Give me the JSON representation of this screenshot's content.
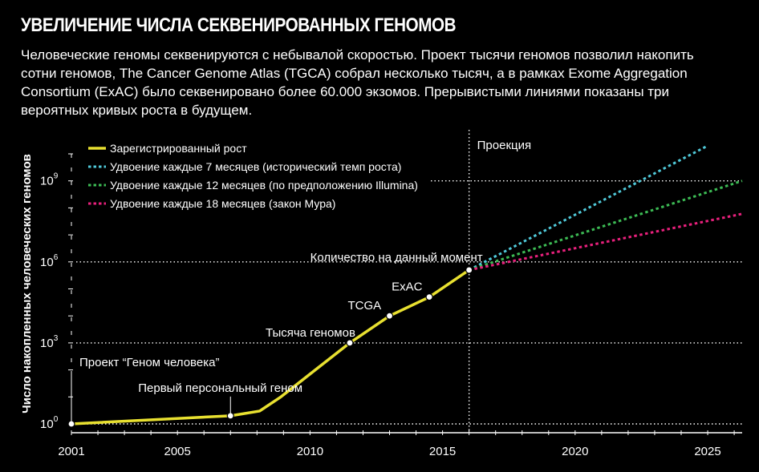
{
  "title": "УВЕЛИЧЕНИЕ ЧИСЛА СЕКВЕНИРОВАННЫХ ГЕНОМОВ",
  "subtitle": "Человеческие геномы секвенируются с небывалой скоростью. Проект тысячи геномов позволил накопить сотни геномов, The Cancer Genome Atlas (TGCA) собрал несколько тысяч, а в рамках Exome Aggregation Consortium (ExAC) было секвенировано более 60.000 экзомов. Прерывистыми линиями показаны три вероятных кривых роста в будущем.",
  "colors": {
    "registered": "#e8e030",
    "d7": "#4fc8d8",
    "d12": "#3cba54",
    "d18": "#e8207c",
    "background": "#000000"
  },
  "chart_data": {
    "type": "line",
    "title": "УВЕЛИЧЕНИЕ ЧИСЛА СЕКВЕНИРОВАННЫХ ГЕНОМОВ",
    "xlabel": "",
    "ylabel": "Число накопленных человеческих геномов",
    "y_scale": "log",
    "xlim": [
      2001,
      2026.3
    ],
    "ylim": [
      1,
      100000000000
    ],
    "x_ticks": [
      2001,
      2005,
      2010,
      2015,
      2020,
      2025
    ],
    "x_tick_labels": [
      "2001",
      "2005",
      "2010",
      "2015",
      "2020",
      "2025"
    ],
    "y_ticks": [
      1,
      1000,
      1000000,
      1000000000
    ],
    "y_tick_labels": [
      {
        "base": "10",
        "exp": "0"
      },
      {
        "base": "10",
        "exp": "3"
      },
      {
        "base": "10",
        "exp": "6"
      },
      {
        "base": "10",
        "exp": "9"
      }
    ],
    "grid": "dotted horizontal at labeled ticks",
    "legend_position": "top-left",
    "projection_label": "Проекция",
    "projection_x": 2016,
    "series": [
      {
        "name": "Зарегистрированный рост",
        "style": "solid",
        "color": "#e8e030",
        "x": [
          2001,
          2007,
          2008.1,
          2008.9,
          2011.5,
          2013,
          2014.5,
          2016
        ],
        "y": [
          1,
          2,
          3,
          10,
          1000,
          10000,
          50000,
          500000
        ]
      },
      {
        "name": "Удвоение каждые 7 месяцев (исторический темп роста)",
        "style": "dashed",
        "color": "#4fc8d8",
        "x": [
          2016,
          2025
        ],
        "y": [
          500000,
          20000000000
        ]
      },
      {
        "name": "Удвоение каждые 12 месяцев (по предположению Illumina)",
        "style": "dashed",
        "color": "#3cba54",
        "x": [
          2016,
          2026.3
        ],
        "y": [
          500000,
          1000000000
        ]
      },
      {
        "name": "Удвоение каждые 18 месяцев (закон Мура)",
        "style": "dashed",
        "color": "#e8207c",
        "x": [
          2016,
          2026.3
        ],
        "y": [
          500000,
          60000000
        ]
      }
    ],
    "annotations": [
      {
        "text": "Проект “Геном человека”",
        "x": 2001,
        "y": 1
      },
      {
        "text": "Первый персональный геном",
        "x": 2007,
        "y": 2
      },
      {
        "text": "Тысяча геномов",
        "x": 2011.5,
        "y": 1000
      },
      {
        "text": "TCGA",
        "x": 2013,
        "y": 10000
      },
      {
        "text": "ExAC",
        "x": 2014.5,
        "y": 50000
      },
      {
        "text": "Количество на данный момент",
        "x": 2016,
        "y": 500000
      }
    ]
  }
}
